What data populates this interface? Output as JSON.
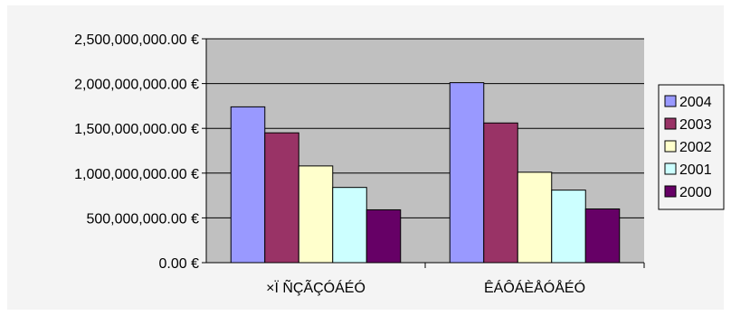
{
  "chart_data": {
    "type": "bar",
    "categories": [
      "×Ï ÑÇÃÇÓÁÉÓ",
      "ÊÁÔÁÈÅÓÅÉÓ"
    ],
    "series": [
      {
        "name": "2004",
        "color": "#9999ff",
        "values": [
          1740000000,
          2010000000
        ]
      },
      {
        "name": "2003",
        "color": "#993366",
        "values": [
          1450000000,
          1560000000
        ]
      },
      {
        "name": "2002",
        "color": "#ffffcc",
        "values": [
          1080000000,
          1010000000
        ]
      },
      {
        "name": "2001",
        "color": "#ccffff",
        "values": [
          840000000,
          810000000
        ]
      },
      {
        "name": "2000",
        "color": "#660066",
        "values": [
          590000000,
          600000000
        ]
      }
    ],
    "y_ticks": [
      "0.00 €",
      "500,000,000.00 €",
      "1,000,000,000.00 €",
      "1,500,000,000.00 €",
      "2,000,000,000.00 €",
      "2,500,000,000.00 €"
    ],
    "ylim": [
      0,
      2500000000
    ],
    "grid": true,
    "legend_position": "right",
    "plot_background": "#c0c0c0",
    "chart_background": "#f4f4f4"
  }
}
